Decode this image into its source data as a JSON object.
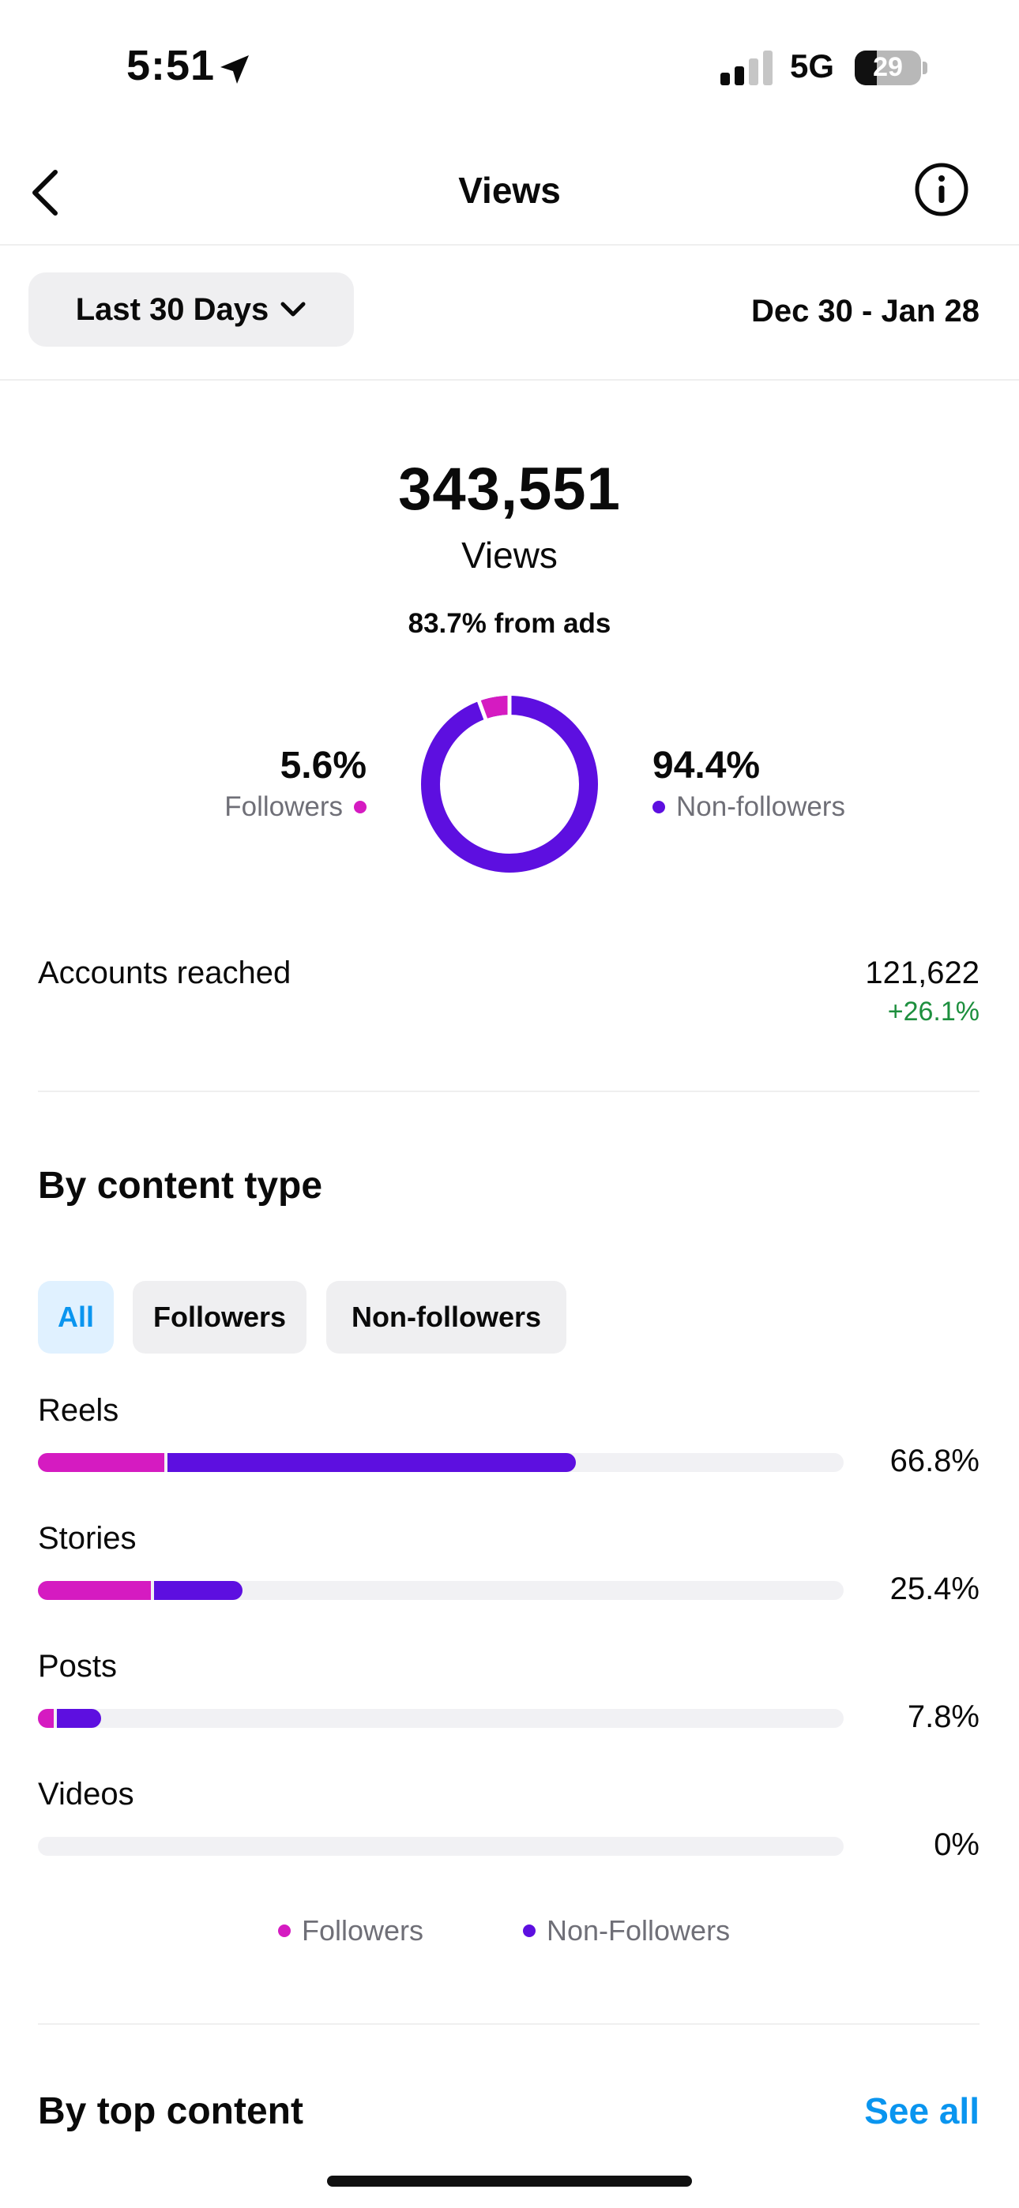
{
  "status_bar": {
    "time": "5:51",
    "network": "5G",
    "battery": "29"
  },
  "header": {
    "title": "Views"
  },
  "filter": {
    "range_label": "Last 30 Days",
    "date_range": "Dec 30 - Jan 28"
  },
  "summary": {
    "views_count": "343,551",
    "views_label": "Views",
    "ads_text": "83.7% from ads",
    "followers_pct": "5.6%",
    "followers_label": "Followers",
    "followers_fraction": 0.056,
    "non_followers_pct": "94.4%",
    "non_followers_label": "Non-followers",
    "non_followers_fraction": 0.944
  },
  "accounts_reached": {
    "label": "Accounts reached",
    "value": "121,622",
    "change": "+26.1%"
  },
  "content_type": {
    "title": "By content type",
    "tabs": [
      "All",
      "Followers",
      "Non-followers"
    ],
    "rows": [
      {
        "label": "Reels",
        "pct": "66.8%",
        "followers_fraction": 0.157,
        "non_followers_fraction": 0.511
      },
      {
        "label": "Stories",
        "pct": "25.4%",
        "followers_fraction": 0.14,
        "non_followers_fraction": 0.114
      },
      {
        "label": "Posts",
        "pct": "7.8%",
        "followers_fraction": 0.02,
        "non_followers_fraction": 0.058
      },
      {
        "label": "Videos",
        "pct": "0%",
        "followers_fraction": 0,
        "non_followers_fraction": 0
      }
    ],
    "legend": {
      "followers": "Followers",
      "non_followers": "Non-Followers"
    }
  },
  "top_content": {
    "title": "By top content",
    "see_all": "See all"
  },
  "colors": {
    "followers": "#d51bc1",
    "non_followers": "#5d0fe0",
    "accent_blue": "#0a95ef",
    "positive": "#1d8f3e"
  },
  "icons": {
    "back": "chevron-left-icon",
    "info": "info-icon",
    "location": "location-arrow-icon",
    "dropdown": "chevron-down-icon"
  }
}
